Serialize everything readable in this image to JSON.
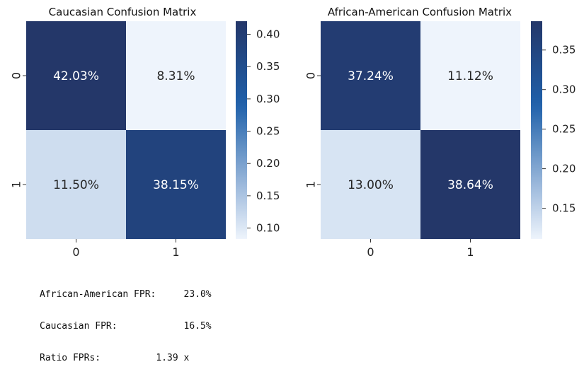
{
  "chart_data": [
    {
      "type": "heatmap",
      "title": "Caucasian Confusion Matrix",
      "x_categories": [
        "0",
        "1"
      ],
      "y_categories": [
        "0",
        "1"
      ],
      "values": [
        [
          0.4203,
          0.0831
        ],
        [
          0.115,
          0.3815
        ]
      ],
      "cell_labels": [
        [
          "42.03%",
          "8.31%"
        ],
        [
          "11.50%",
          "38.15%"
        ]
      ],
      "colorbar": {
        "range": [
          0.0831,
          0.4203
        ],
        "ticks": [
          0.1,
          0.15,
          0.2,
          0.25,
          0.3,
          0.35,
          0.4
        ],
        "tick_labels": [
          "0.10",
          "0.15",
          "0.20",
          "0.25",
          "0.30",
          "0.35",
          "0.40"
        ]
      },
      "colormap": "Blues"
    },
    {
      "type": "heatmap",
      "title": "African-American Confusion Matrix",
      "x_categories": [
        "0",
        "1"
      ],
      "y_categories": [
        "0",
        "1"
      ],
      "values": [
        [
          0.3724,
          0.1112
        ],
        [
          0.13,
          0.3864
        ]
      ],
      "cell_labels": [
        [
          "37.24%",
          "11.12%"
        ],
        [
          "13.00%",
          "38.64%"
        ]
      ],
      "colorbar": {
        "range": [
          0.1112,
          0.3864
        ],
        "ticks": [
          0.15,
          0.2,
          0.25,
          0.3,
          0.35
        ],
        "tick_labels": [
          "0.15",
          "0.20",
          "0.25",
          "0.30",
          "0.35"
        ]
      },
      "colormap": "Blues"
    }
  ],
  "colors": {
    "scale_light": "#eef4fc",
    "scale_mid": "#1f60aa",
    "scale_dark": "#243769",
    "text_on_dark": "#ffffff",
    "text_on_light": "#262626"
  },
  "stats": {
    "aa_fpr": "African-American FPR:     23.0%",
    "cauc_fpr": "Caucasian FPR:            16.5%",
    "ratio": "Ratio FPRs:          1.39 x"
  }
}
